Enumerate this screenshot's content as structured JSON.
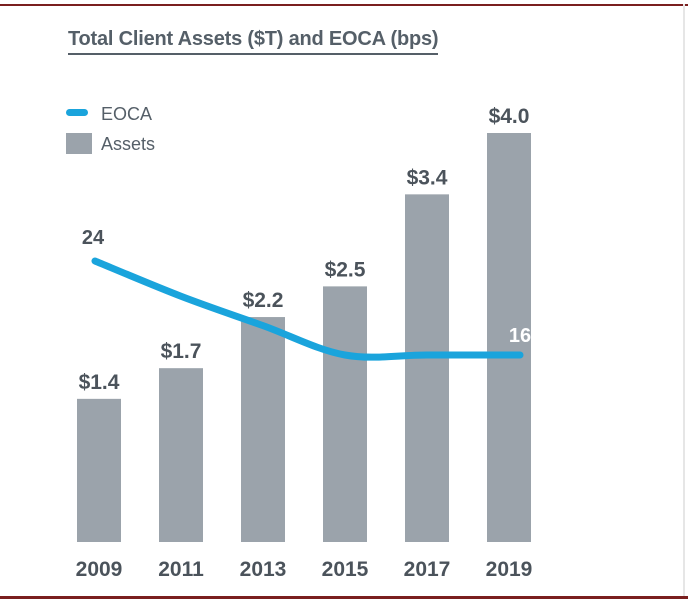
{
  "colors": {
    "bar": "#9ba3ab",
    "line": "#1aa4dc",
    "text": "#4b535b",
    "border": "#7a1f1f"
  },
  "chart_data": {
    "type": "bar",
    "title": "Total Client Assets ($T) and EOCA (bps)",
    "categories": [
      "2009",
      "2011",
      "2013",
      "2015",
      "2017",
      "2019"
    ],
    "series": [
      {
        "name": "Assets",
        "kind": "bar",
        "values": [
          1.4,
          1.7,
          2.2,
          2.5,
          3.4,
          4.0
        ],
        "labels": [
          "$1.4",
          "$1.7",
          "$2.2",
          "$2.5",
          "$3.4",
          "$4.0"
        ]
      },
      {
        "name": "EOCA",
        "kind": "line",
        "values": [
          24,
          21,
          18.5,
          16,
          16,
          16
        ],
        "labels": [
          "24",
          "",
          "",
          "",
          "",
          "16"
        ]
      }
    ],
    "legend": {
      "position": "top-left",
      "entries": [
        "EOCA",
        "Assets"
      ]
    },
    "xlabel": "",
    "ylabel": "",
    "ylim_assets": [
      0,
      4.0
    ],
    "ylim_eoca": [
      0,
      40
    ],
    "grid": false
  }
}
